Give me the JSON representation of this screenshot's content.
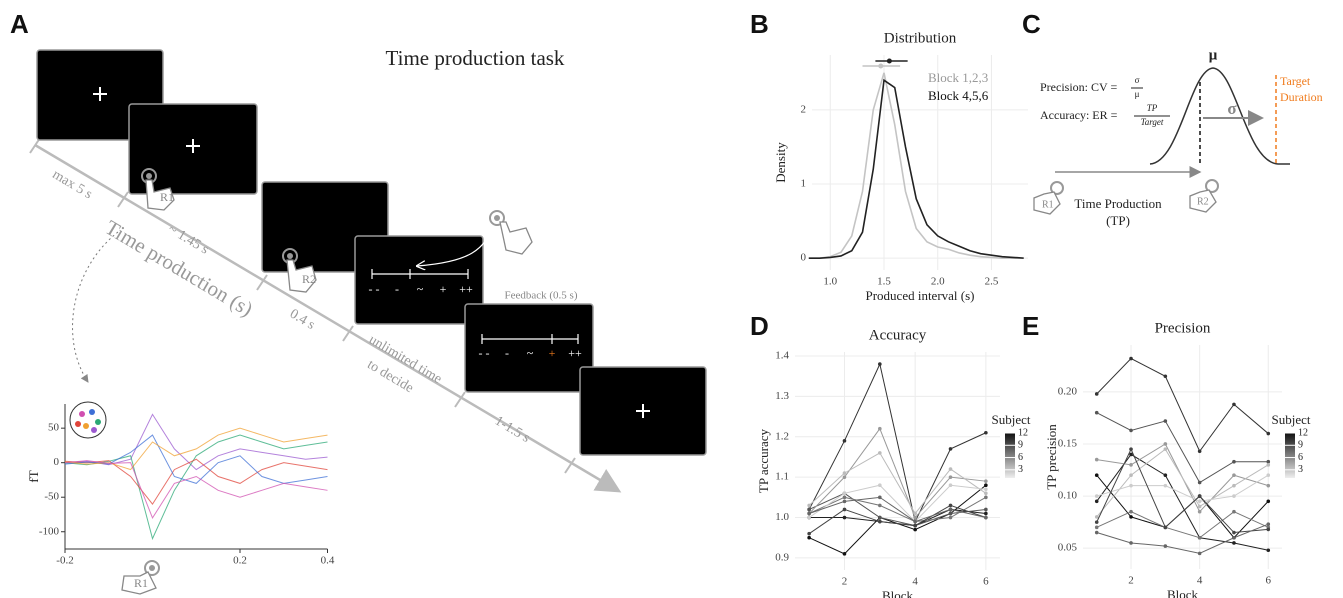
{
  "figure": {
    "labels": [
      "A",
      "B",
      "C",
      "D",
      "E"
    ]
  },
  "panel_a": {
    "title": "Time production task",
    "timeline": [
      "max 5 s",
      "~ 1.45 s",
      "0.4 s",
      [
        "unlimited time",
        "to decide"
      ],
      "1-1.5 s"
    ],
    "axis_label": "Time production (s)",
    "feedback": "Feedback (0.5 s)",
    "responses": [
      "R1",
      "R2",
      "R1"
    ],
    "scale": [
      "- -",
      "-",
      "~",
      "+",
      "++"
    ]
  },
  "panel_c": {
    "mu": "μ",
    "sigma": "σ",
    "target": [
      "Target",
      "Duration"
    ],
    "precision": {
      "label": "Precision: CV =",
      "num": "σ",
      "den": "μ"
    },
    "accuracy": {
      "label": "Accuracy: ER =",
      "num": "TP",
      "den": "Target"
    },
    "tp": [
      "Time Production",
      "(TP)"
    ],
    "responses": [
      "R1",
      "R2"
    ]
  },
  "chart_data": [
    {
      "type": "line",
      "ylabel": "fT",
      "x": [
        -0.2,
        -0.15,
        -0.1,
        -0.05,
        0,
        0.05,
        0.1,
        0.15,
        0.2,
        0.25,
        0.3,
        0.35,
        0.4
      ],
      "xlim": [
        -0.2,
        0.4
      ],
      "xticks": [
        -0.2,
        0.2,
        0.4
      ],
      "ylim": [
        -125,
        85
      ],
      "yticks": [
        50,
        0,
        -50,
        -100
      ],
      "series": [
        {
          "color": "#9b59d0",
          "values": [
            0,
            2,
            -3,
            5,
            70,
            20,
            -10,
            10,
            20,
            15,
            10,
            5,
            8
          ]
        },
        {
          "color": "#2aa876",
          "values": [
            0,
            -3,
            2,
            10,
            -110,
            -40,
            10,
            30,
            40,
            30,
            20,
            25,
            30
          ]
        },
        {
          "color": "#e0443a",
          "values": [
            2,
            0,
            3,
            -20,
            -60,
            -10,
            5,
            -20,
            -30,
            -10,
            0,
            -5,
            -10
          ]
        },
        {
          "color": "#3d6fd6",
          "values": [
            -2,
            1,
            -2,
            15,
            40,
            -20,
            -30,
            0,
            10,
            -20,
            -30,
            -25,
            -20
          ]
        },
        {
          "color": "#f0a030",
          "values": [
            1,
            -2,
            0,
            -10,
            30,
            10,
            20,
            40,
            50,
            40,
            30,
            35,
            40
          ]
        },
        {
          "color": "#d04fb0",
          "values": [
            0,
            3,
            -1,
            0,
            -80,
            -30,
            -20,
            -40,
            -50,
            -40,
            -30,
            -35,
            -40
          ]
        }
      ]
    },
    {
      "type": "line",
      "title": "Distribution",
      "xlabel": "Produced interval (s)",
      "ylabel": "Density",
      "x": [
        0.8,
        0.9,
        1.0,
        1.1,
        1.2,
        1.3,
        1.4,
        1.5,
        1.6,
        1.7,
        1.8,
        1.9,
        2.0,
        2.1,
        2.2,
        2.3,
        2.4,
        2.5,
        2.6,
        2.7,
        2.8
      ],
      "xlim": [
        0.83,
        2.84
      ],
      "xticks": [
        {
          "value": 1,
          "label": "1.0"
        },
        1.5,
        {
          "value": 2,
          "label": "2.0"
        },
        2.5
      ],
      "ylim": [
        -0.16,
        2.74
      ],
      "yticks": [
        0,
        1,
        2
      ],
      "grid": true,
      "series": [
        {
          "name": "Block 1,2,3",
          "color": "#c4c4c4",
          "mean": 1.47,
          "interval": [
            1.3,
            1.65
          ],
          "values": [
            0,
            0,
            0.02,
            0.08,
            0.3,
            0.9,
            2.0,
            2.5,
            1.8,
            0.9,
            0.4,
            0.22,
            0.15,
            0.12,
            0.07,
            0.04,
            0.02,
            0.01,
            0,
            0,
            0
          ]
        },
        {
          "name": "Block 4,5,6",
          "color": "#222222",
          "mean": 1.55,
          "interval": [
            1.42,
            1.72
          ],
          "values": [
            0,
            0,
            0.01,
            0.03,
            0.1,
            0.35,
            1.2,
            2.4,
            2.3,
            1.5,
            0.8,
            0.45,
            0.3,
            0.22,
            0.16,
            0.1,
            0.06,
            0.04,
            0.02,
            0.01,
            0
          ]
        }
      ]
    },
    {
      "type": "line",
      "title": "Accuracy",
      "xlabel": "Block",
      "ylabel": "TP accuracy",
      "x": [
        1,
        2,
        3,
        4,
        5,
        6
      ],
      "xlim": [
        0.6,
        6.4
      ],
      "xticks": [
        2,
        4,
        6
      ],
      "ylim": [
        0.87,
        1.41
      ],
      "yticks": [
        0.9,
        {
          "value": 1,
          "label": "1.0"
        },
        1.1,
        1.2,
        1.3,
        1.4
      ],
      "grid": true,
      "colorbar": {
        "title": "Subject",
        "ticks": [
          3,
          6,
          9,
          12
        ],
        "lim": [
          1,
          12
        ]
      },
      "series": [
        {
          "color": "#333333",
          "values": [
            1.02,
            1.19,
            1.38,
            0.99,
            1.17,
            1.21
          ]
        },
        {
          "color": "#111111",
          "values": [
            0.95,
            0.91,
            1.0,
            0.97,
            1.01,
            1.08
          ]
        },
        {
          "color": "#222222",
          "values": [
            1.0,
            1.0,
            0.99,
            0.98,
            1.02,
            1.01
          ]
        },
        {
          "color": "#555555",
          "values": [
            1.02,
            1.06,
            1.0,
            0.98,
            1.01,
            1.02
          ]
        },
        {
          "color": "#777777",
          "values": [
            1.01,
            1.05,
            1.03,
            0.99,
            1.0,
            1.05
          ]
        },
        {
          "color": "#999999",
          "values": [
            1.01,
            1.1,
            1.22,
            1.0,
            1.1,
            1.09
          ]
        },
        {
          "color": "#bbbbbb",
          "values": [
            1.03,
            1.11,
            1.16,
            1.01,
            1.12,
            1.06
          ]
        },
        {
          "color": "#cccccc",
          "values": [
            1.0,
            1.06,
            1.08,
            0.99,
            1.08,
            1.07
          ]
        },
        {
          "color": "#444444",
          "values": [
            0.96,
            1.02,
            0.99,
            0.98,
            1.03,
            1.0
          ]
        },
        {
          "color": "#666666",
          "values": [
            1.01,
            1.04,
            1.05,
            0.99,
            1.02,
            1.0
          ]
        }
      ]
    },
    {
      "type": "line",
      "title": "Precision",
      "xlabel": "Block",
      "ylabel": "TP precision",
      "x": [
        1,
        2,
        3,
        4,
        5,
        6
      ],
      "xlim": [
        0.6,
        6.4
      ],
      "xticks": [
        2,
        4,
        6
      ],
      "ylim": [
        0.03,
        0.245
      ],
      "yticks": [
        0.05,
        {
          "value": 0.1,
          "label": "0.10"
        },
        0.15,
        {
          "value": 0.2,
          "label": "0.20"
        }
      ],
      "grid": true,
      "colorbar": {
        "title": "Subject",
        "ticks": [
          3,
          6,
          9,
          12
        ],
        "lim": [
          1,
          12
        ]
      },
      "series": [
        {
          "color": "#333333",
          "values": [
            0.198,
            0.232,
            0.215,
            0.143,
            0.188,
            0.16
          ]
        },
        {
          "color": "#111111",
          "values": [
            0.12,
            0.08,
            0.07,
            0.1,
            0.06,
            0.095
          ]
        },
        {
          "color": "#222222",
          "values": [
            0.095,
            0.14,
            0.12,
            0.06,
            0.055,
            0.048
          ]
        },
        {
          "color": "#555555",
          "values": [
            0.18,
            0.163,
            0.172,
            0.113,
            0.133,
            0.133
          ]
        },
        {
          "color": "#777777",
          "values": [
            0.07,
            0.085,
            0.07,
            0.06,
            0.085,
            0.07
          ]
        },
        {
          "color": "#999999",
          "values": [
            0.135,
            0.13,
            0.15,
            0.085,
            0.12,
            0.11
          ]
        },
        {
          "color": "#bbbbbb",
          "values": [
            0.08,
            0.12,
            0.145,
            0.09,
            0.11,
            0.13
          ]
        },
        {
          "color": "#cccccc",
          "values": [
            0.1,
            0.11,
            0.11,
            0.095,
            0.1,
            0.12
          ]
        },
        {
          "color": "#444444",
          "values": [
            0.075,
            0.145,
            0.07,
            0.1,
            0.065,
            0.068
          ]
        },
        {
          "color": "#666666",
          "values": [
            0.065,
            0.055,
            0.052,
            0.045,
            0.06,
            0.073
          ]
        }
      ]
    }
  ]
}
